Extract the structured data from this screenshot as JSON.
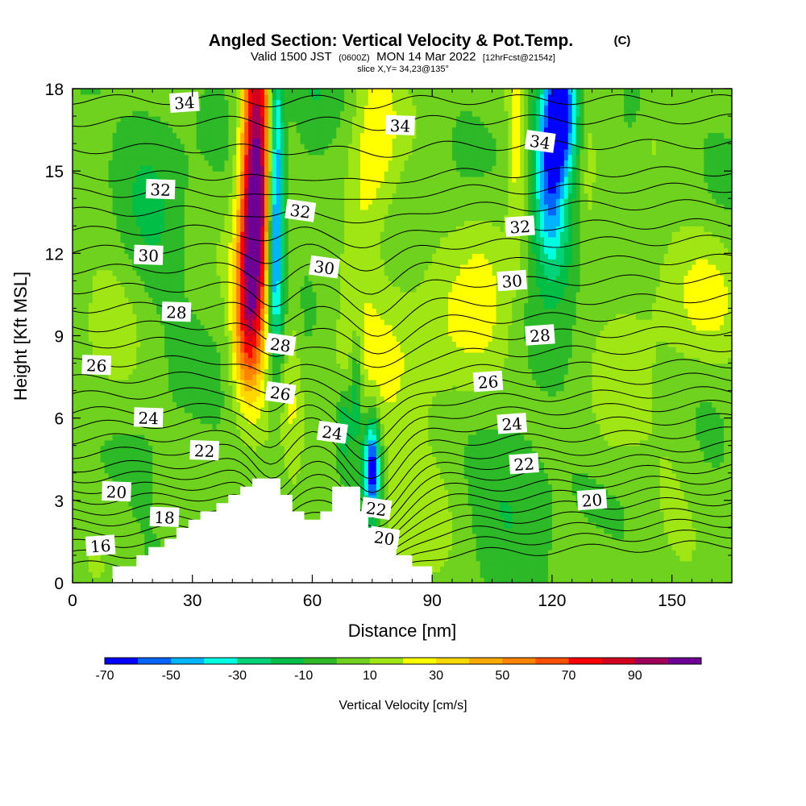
{
  "chart_data": {
    "type": "heatmap",
    "title": "Angled Section: Vertical Velocity & Pot.Temp.",
    "title_unit": "(C)",
    "subtitle_parts": [
      "Valid 1500 JST",
      "(0600Z)",
      "MON 14 Mar 2022",
      "[12hrFcst@2154z]"
    ],
    "slice_label": "slice X,Y= 34,23@135°",
    "xlabel": "Distance [nm]",
    "ylabel": "Height [Kft MSL]",
    "xlim": [
      0,
      165
    ],
    "ylim": [
      0,
      18
    ],
    "x_ticks": [
      "0",
      "30",
      "60",
      "90",
      "120",
      "150"
    ],
    "y_ticks": [
      "0",
      "3",
      "6",
      "9",
      "12",
      "15",
      "18"
    ],
    "colorbar": {
      "label": "Vertical Velocity [cm/s]",
      "tick_labels": [
        "-70",
        "-50",
        "-30",
        "-10",
        "10",
        "30",
        "50",
        "70",
        "90"
      ],
      "bounds": [
        -70,
        -60,
        -50,
        -40,
        -30,
        -20,
        -10,
        0,
        10,
        20,
        30,
        40,
        50,
        60,
        70,
        80,
        90,
        100
      ],
      "colors": [
        "#0000ff",
        "#0064ff",
        "#00b4ff",
        "#00ffe1",
        "#00d278",
        "#00be46",
        "#2db928",
        "#6ed21e",
        "#a0e614",
        "#ffff00",
        "#ffd700",
        "#ffaa00",
        "#ff8200",
        "#ff5000",
        "#ff0000",
        "#d2001e",
        "#a0005a",
        "#6e0096"
      ]
    },
    "field_blobs": [
      {
        "x": 46,
        "y": 15.5,
        "sx": 2.6,
        "sy": 3.8,
        "w": 100
      },
      {
        "x": 44.5,
        "y": 11.0,
        "sx": 2.6,
        "sy": 2.4,
        "w": 60
      },
      {
        "x": 43,
        "y": 8.5,
        "sx": 2.5,
        "sy": 1.6,
        "w": 25
      },
      {
        "x": 51,
        "y": 14.5,
        "sx": 1.3,
        "sy": 4.0,
        "w": -62
      },
      {
        "x": 50,
        "y": 11.5,
        "sx": 1.0,
        "sy": 2.0,
        "w": -20
      },
      {
        "x": 75,
        "y": 4.2,
        "sx": 1.4,
        "sy": 1.3,
        "w": -75
      },
      {
        "x": 71,
        "y": 7.0,
        "sx": 1.1,
        "sy": 1.6,
        "w": -28
      },
      {
        "x": 68,
        "y": 5.8,
        "sx": 1.2,
        "sy": 1.0,
        "w": -25
      },
      {
        "x": 55,
        "y": 7.8,
        "sx": 1.6,
        "sy": 2.8,
        "w": 14
      },
      {
        "x": 76,
        "y": 16.0,
        "sx": 4.0,
        "sy": 2.5,
        "w": 22
      },
      {
        "x": 72,
        "y": 13.0,
        "sx": 3.0,
        "sy": 2.0,
        "w": 10
      },
      {
        "x": 76,
        "y": 7.5,
        "sx": 8.0,
        "sy": 3.0,
        "w": 14
      },
      {
        "x": 95,
        "y": 8.5,
        "sx": 8.0,
        "sy": 2.2,
        "w": 16
      },
      {
        "x": 104,
        "y": 11.0,
        "sx": 4.5,
        "sy": 2.5,
        "w": 12
      },
      {
        "x": 111,
        "y": 16.0,
        "sx": 1.6,
        "sy": 3.2,
        "w": 20
      },
      {
        "x": 122,
        "y": 17.0,
        "sx": 3.0,
        "sy": 1.8,
        "w": -70
      },
      {
        "x": 119,
        "y": 14.5,
        "sx": 2.8,
        "sy": 2.0,
        "w": -48
      },
      {
        "x": 122,
        "y": 12.5,
        "sx": 3.5,
        "sy": 1.5,
        "w": -20
      },
      {
        "x": 129,
        "y": 16.5,
        "sx": 2.0,
        "sy": 2.5,
        "w": 14
      },
      {
        "x": 143,
        "y": 11.0,
        "sx": 6.0,
        "sy": 2.0,
        "w": 8
      },
      {
        "x": 158,
        "y": 10.5,
        "sx": 7.0,
        "sy": 1.8,
        "w": 16
      },
      {
        "x": 140,
        "y": 17.5,
        "sx": 2.0,
        "sy": 1.0,
        "w": -12
      },
      {
        "x": 150,
        "y": 5.0,
        "sx": 5.0,
        "sy": 2.0,
        "w": 7
      },
      {
        "x": 110,
        "y": 4.0,
        "sx": 8.0,
        "sy": 2.0,
        "w": -14
      },
      {
        "x": 20,
        "y": 14.0,
        "sx": 6.0,
        "sy": 4.0,
        "w": -12
      },
      {
        "x": 10,
        "y": 9.0,
        "sx": 8.0,
        "sy": 3.5,
        "w": 8
      },
      {
        "x": 85,
        "y": 1.5,
        "sx": 6.0,
        "sy": 2.0,
        "w": 10
      },
      {
        "x": 20,
        "y": 4.0,
        "sx": 5.0,
        "sy": 2.0,
        "w": -5
      },
      {
        "x": 60,
        "y": 17.0,
        "sx": 4.0,
        "sy": 2.0,
        "w": -10
      },
      {
        "x": 135,
        "y": 6.0,
        "sx": 5.0,
        "sy": 2.0,
        "w": 10
      }
    ],
    "terrain_nm_kft": [
      [
        10,
        0.6
      ],
      [
        16,
        0.6
      ],
      [
        16,
        1.0
      ],
      [
        19,
        1.0
      ],
      [
        19,
        1.3
      ],
      [
        23,
        1.3
      ],
      [
        23,
        1.6
      ],
      [
        26,
        1.6
      ],
      [
        26,
        2.0
      ],
      [
        29,
        2.0
      ],
      [
        29,
        2.3
      ],
      [
        32,
        2.3
      ],
      [
        32,
        2.6
      ],
      [
        36,
        2.6
      ],
      [
        36,
        2.9
      ],
      [
        39,
        2.9
      ],
      [
        39,
        3.2
      ],
      [
        42,
        3.2
      ],
      [
        42,
        3.5
      ],
      [
        45,
        3.5
      ],
      [
        45,
        3.8
      ],
      [
        52,
        3.8
      ],
      [
        52,
        3.2
      ],
      [
        55,
        3.2
      ],
      [
        55,
        2.6
      ],
      [
        58,
        2.6
      ],
      [
        58,
        2.3
      ],
      [
        62,
        2.3
      ],
      [
        62,
        2.6
      ],
      [
        65,
        2.6
      ],
      [
        65,
        3.5
      ],
      [
        72,
        3.5
      ],
      [
        72,
        2.6
      ],
      [
        74,
        2.6
      ],
      [
        74,
        2.0
      ],
      [
        77,
        2.0
      ],
      [
        77,
        1.3
      ],
      [
        81,
        1.3
      ],
      [
        81,
        1.0
      ],
      [
        85,
        1.0
      ],
      [
        85,
        0.6
      ],
      [
        90,
        0.6
      ],
      [
        90,
        0
      ]
    ],
    "isentropes": [
      {
        "yL": 17.6,
        "yR": 17.6,
        "trough": 0.15,
        "label": "34",
        "lx": 28,
        "dip": 0.3
      },
      {
        "yL": 16.8,
        "yR": 16.9,
        "trough": 0.2,
        "label": "34",
        "lx": 82,
        "dip": 0.3
      },
      {
        "yL": 15.8,
        "yR": 16.0,
        "trough": 0.3,
        "label": "34",
        "lx": 117,
        "dip": 0.5
      },
      {
        "yL": 14.8,
        "yR": 15.0,
        "trough": 0.4
      },
      {
        "yL": 14.2,
        "yR": 14.4,
        "trough": 0.5,
        "label": "32",
        "lx": 22,
        "dip": 0.5
      },
      {
        "yL": 13.5,
        "yR": 13.8,
        "trough": 0.6,
        "label": "32",
        "lx": 57,
        "dip": 0.6
      },
      {
        "yL": 12.8,
        "yR": 13.1,
        "trough": 0.7,
        "label": "32",
        "lx": 112,
        "dip": 0.5
      },
      {
        "yL": 12.1,
        "yR": 12.5,
        "trough": 0.8,
        "label": "30",
        "lx": 19,
        "dip": 0.7
      },
      {
        "yL": 11.4,
        "yR": 11.8,
        "trough": 0.9,
        "label": "30",
        "lx": 63,
        "dip": 0.8
      },
      {
        "yL": 10.7,
        "yR": 11.1,
        "trough": 1.0,
        "label": "30",
        "lx": 110,
        "dip": 0.7
      },
      {
        "yL": 10.0,
        "yR": 10.4,
        "trough": 1.1,
        "label": "28",
        "lx": 26,
        "dip": 0.9
      },
      {
        "yL": 9.3,
        "yR": 9.8,
        "trough": 1.2,
        "label": "28",
        "lx": 52,
        "dip": 1.0
      },
      {
        "yL": 8.7,
        "yR": 9.2,
        "trough": 1.2,
        "label": "28",
        "lx": 117,
        "dip": 1.0
      },
      {
        "yL": 8.0,
        "yR": 8.6,
        "trough": 1.3,
        "label": "26",
        "lx": 6,
        "dip": 1.0
      },
      {
        "yL": 7.4,
        "yR": 8.0,
        "trough": 1.4,
        "label": "26",
        "lx": 52,
        "dip": 1.2
      },
      {
        "yL": 6.8,
        "yR": 7.5,
        "trough": 1.4,
        "label": "26",
        "lx": 104,
        "dip": 1.1
      },
      {
        "yL": 6.2,
        "yR": 7.0,
        "trough": 1.5,
        "label": "24",
        "lx": 19,
        "dip": 1.2
      },
      {
        "yL": 5.7,
        "yR": 6.5,
        "trough": 1.5,
        "label": "24",
        "lx": 65,
        "dip": 1.3
      },
      {
        "yL": 5.2,
        "yR": 6.0,
        "trough": 1.6,
        "label": "24",
        "lx": 110,
        "dip": 1.3
      },
      {
        "yL": 4.7,
        "yR": 5.5,
        "trough": 1.6,
        "label": "22",
        "lx": 33,
        "dip": 1.3
      },
      {
        "yL": 4.2,
        "yR": 5.0,
        "trough": 1.6,
        "label": "22",
        "lx": 76,
        "dip": 1.4
      },
      {
        "yL": 3.8,
        "yR": 4.6,
        "trough": 1.7,
        "label": "22",
        "lx": 113,
        "dip": 1.4
      },
      {
        "yL": 3.4,
        "yR": 4.2,
        "trough": 1.7,
        "label": "20",
        "lx": 11,
        "dip": 1.3
      },
      {
        "yL": 3.0,
        "yR": 3.8,
        "trough": 1.7,
        "label": "20",
        "lx": 78,
        "dip": 1.5
      },
      {
        "yL": 2.6,
        "yR": 3.4,
        "trough": 1.6,
        "label": "20",
        "lx": 130,
        "dip": 1.4
      },
      {
        "yL": 2.2,
        "yR": 3.0,
        "trough": 1.5,
        "label": "18",
        "lx": 23,
        "dip": 1.2
      },
      {
        "yL": 1.8,
        "yR": 2.6,
        "trough": 1.4
      },
      {
        "yL": 1.4,
        "yR": 2.2,
        "trough": 1.3,
        "label": "16",
        "lx": 7,
        "dip": 1.0
      },
      {
        "yL": 1.0,
        "yR": 1.8,
        "trough": 1.2
      },
      {
        "yL": 0.6,
        "yR": 1.4,
        "trough": 1.0
      }
    ]
  }
}
